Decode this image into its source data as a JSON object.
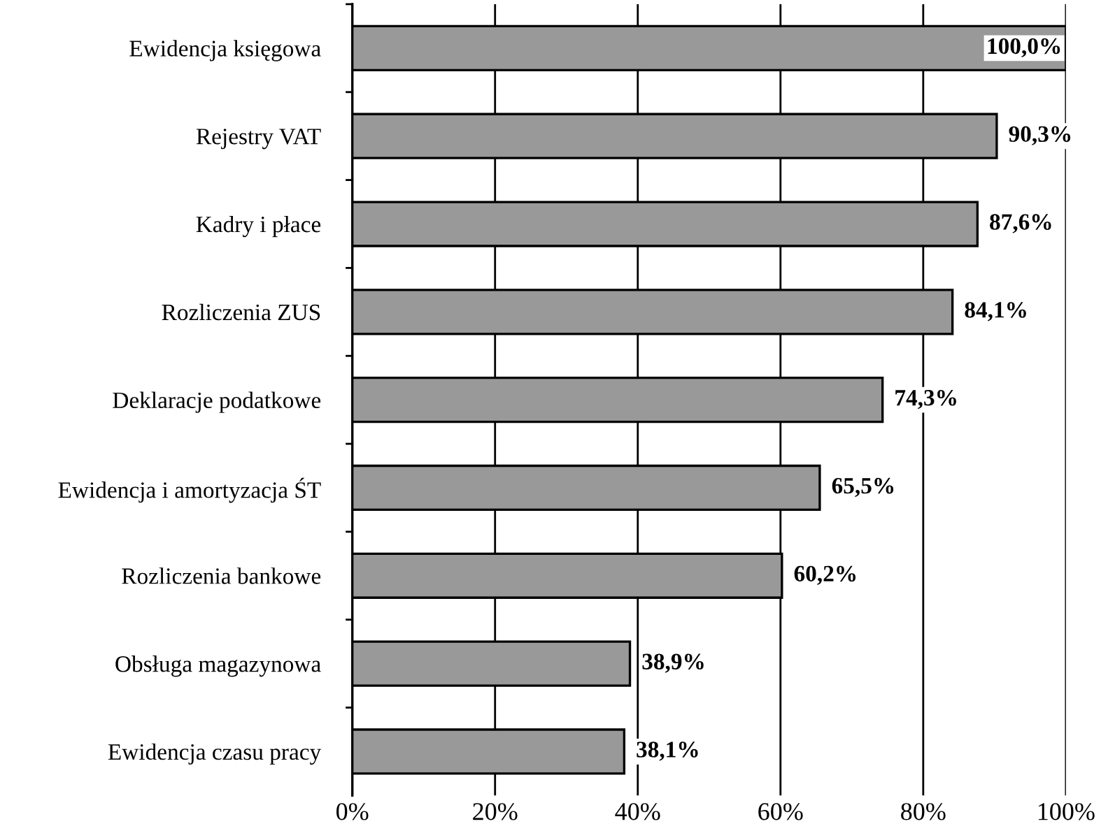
{
  "chart_data": {
    "type": "bar",
    "orientation": "horizontal",
    "categories": [
      "Ewidencja księgowa",
      "Rejestry VAT",
      "Kadry i płace",
      "Rozliczenia ZUS",
      "Deklaracje podatkowe",
      "Ewidencja i amortyzacja ŚT",
      "Rozliczenia bankowe",
      "Obsługa magazynowa",
      "Ewidencja czasu pracy"
    ],
    "values": [
      100.0,
      90.3,
      87.6,
      84.1,
      74.3,
      65.5,
      60.2,
      38.9,
      38.1
    ],
    "value_labels": [
      "100,0%",
      "90,3%",
      "87,6%",
      "84,1%",
      "74,3%",
      "65,5%",
      "60,2%",
      "38,9%",
      "38,1%"
    ],
    "color": "#999999",
    "xlim": [
      0,
      100
    ],
    "xticks": [
      {
        "value": 0,
        "label": "0%"
      },
      {
        "value": 20,
        "label": "20%"
      },
      {
        "value": 40,
        "label": "40%"
      },
      {
        "value": 60,
        "label": "60%"
      },
      {
        "value": 80,
        "label": "80%"
      },
      {
        "value": 100,
        "label": "100%"
      }
    ],
    "grid": "x",
    "legend": false
  }
}
